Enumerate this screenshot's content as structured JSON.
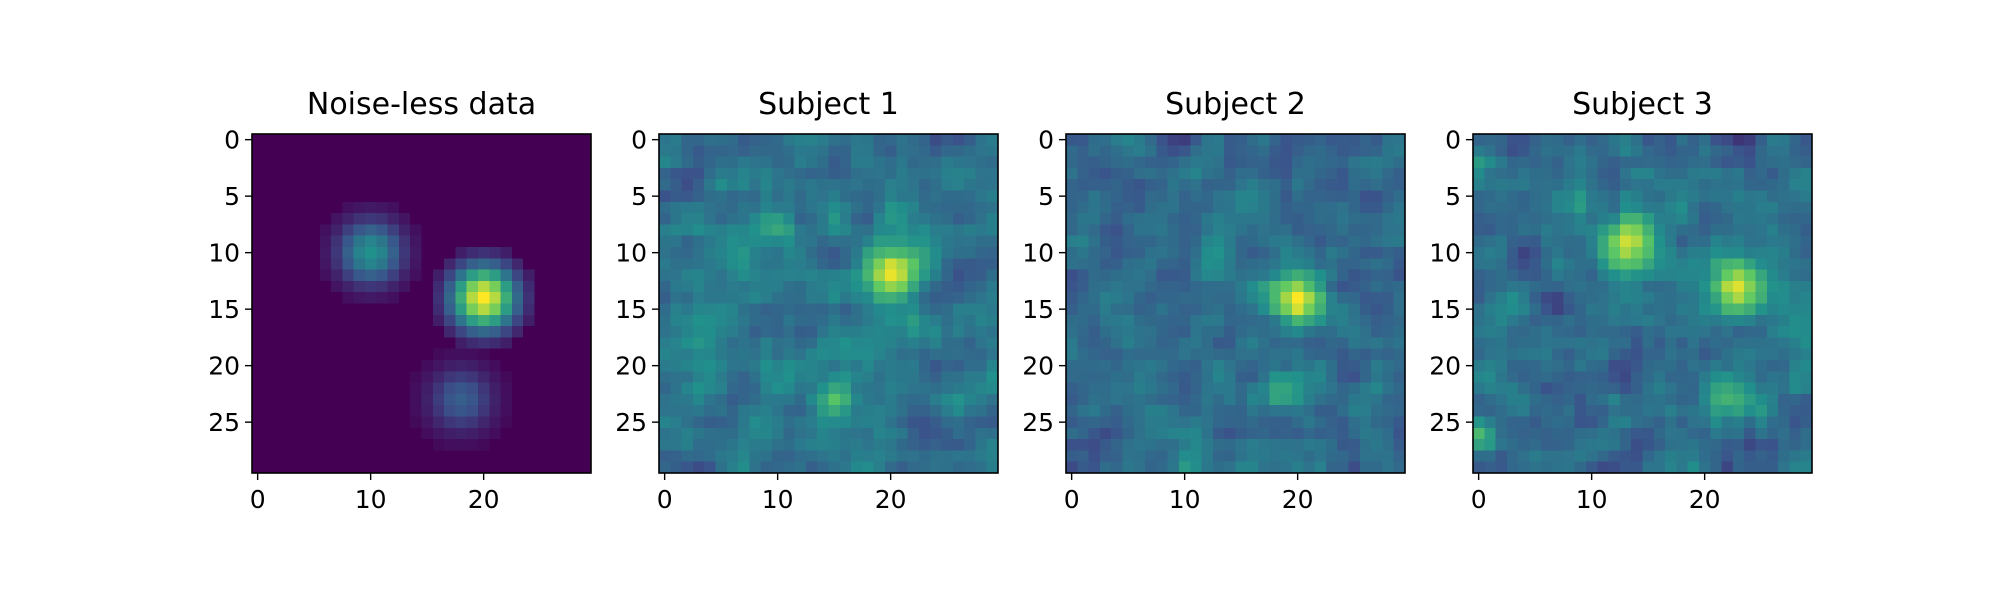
{
  "chart_data": [
    {
      "type": "heatmap",
      "title": "Noise-less data",
      "colormap": "viridis",
      "size": [
        30,
        30
      ],
      "x_ticks": [
        0,
        10,
        20
      ],
      "y_ticks": [
        0,
        5,
        10,
        15,
        20,
        25
      ],
      "value_range": [
        0,
        1
      ],
      "blobs": [
        {
          "cx": 10,
          "cy": 10,
          "radius": 4.5,
          "peak": 0.5
        },
        {
          "cx": 20,
          "cy": 14,
          "radius": 4.5,
          "peak": 1.0
        },
        {
          "cx": 18,
          "cy": 23,
          "radius": 4.5,
          "peak": 0.3
        }
      ],
      "noise": 0.0,
      "seed": 1
    },
    {
      "type": "heatmap",
      "title": "Subject 1",
      "colormap": "viridis",
      "size": [
        30,
        30
      ],
      "x_ticks": [
        0,
        10,
        20
      ],
      "y_ticks": [
        0,
        5,
        10,
        15,
        20,
        25
      ],
      "value_range": [
        0,
        1
      ],
      "blobs": [
        {
          "cx": 20,
          "cy": 12,
          "radius": 3.5,
          "peak": 0.55
        },
        {
          "cx": 9.5,
          "cy": 7.5,
          "radius": 2.5,
          "peak": 0.25
        },
        {
          "cx": 15,
          "cy": 23,
          "radius": 2.5,
          "peak": 0.25
        }
      ],
      "base": 0.38,
      "noise": 0.28,
      "seed": 11
    },
    {
      "type": "heatmap",
      "title": "Subject 2",
      "colormap": "viridis",
      "size": [
        30,
        30
      ],
      "x_ticks": [
        0,
        10,
        20
      ],
      "y_ticks": [
        0,
        5,
        10,
        15,
        20,
        25
      ],
      "value_range": [
        0,
        1
      ],
      "blobs": [
        {
          "cx": 20,
          "cy": 14,
          "radius": 3.5,
          "peak": 0.6
        },
        {
          "cx": 19,
          "cy": 22,
          "radius": 2.5,
          "peak": 0.25
        },
        {
          "cx": 10,
          "cy": 29,
          "radius": 2.0,
          "peak": 0.2
        }
      ],
      "base": 0.35,
      "noise": 0.25,
      "seed": 27
    },
    {
      "type": "heatmap",
      "title": "Subject 3",
      "colormap": "viridis",
      "size": [
        30,
        30
      ],
      "x_ticks": [
        0,
        10,
        20
      ],
      "y_ticks": [
        0,
        5,
        10,
        15,
        20,
        25
      ],
      "value_range": [
        0,
        1
      ],
      "blobs": [
        {
          "cx": 13,
          "cy": 9,
          "radius": 3.5,
          "peak": 0.6
        },
        {
          "cx": 23,
          "cy": 13,
          "radius": 3.5,
          "peak": 0.55
        },
        {
          "cx": 22,
          "cy": 23,
          "radius": 3.0,
          "peak": 0.3
        },
        {
          "cx": 0,
          "cy": 26,
          "radius": 2.0,
          "peak": 0.3
        }
      ],
      "base": 0.36,
      "noise": 0.28,
      "seed": 43
    }
  ]
}
